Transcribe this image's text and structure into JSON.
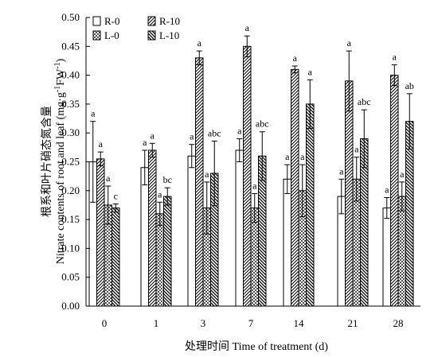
{
  "chart_data": {
    "type": "bar",
    "xlabel": "处理时间 Time of treatment (d)",
    "ylabel_cn": "根系和叶片硝态氮含量",
    "ylabel_en_pre": "Nitrate contents of root and leaf (mg·g",
    "ylabel_en_sup1": "-1",
    "ylabel_en_mid": "FW",
    "ylabel_en_sup2": "-1",
    "ylabel_en_post": ")",
    "ylim": [
      0,
      0.5
    ],
    "yticks": [
      "0.00",
      "0.05",
      "0.10",
      "0.15",
      "0.20",
      "0.25",
      "0.30",
      "0.35",
      "0.40",
      "0.45",
      "0.50"
    ],
    "categories": [
      "0",
      "1",
      "3",
      "7",
      "14",
      "21",
      "28"
    ],
    "grid": false,
    "legend_position": "top-left",
    "series": [
      {
        "name": "R-0",
        "pattern": "none",
        "values": [
          0.25,
          0.24,
          0.26,
          0.27,
          0.22,
          0.19,
          0.17
        ],
        "errors": [
          0.07,
          0.03,
          0.02,
          0.02,
          0.025,
          0.03,
          0.018
        ],
        "labels": [
          "a",
          "a",
          "a",
          "a",
          "a",
          "a",
          "a"
        ]
      },
      {
        "name": "R-10",
        "pattern": "diag",
        "values": [
          0.255,
          0.27,
          0.43,
          0.45,
          0.41,
          0.39,
          0.4
        ],
        "errors": [
          0.012,
          0.012,
          0.012,
          0.018,
          0.006,
          0.052,
          0.018
        ],
        "labels": [
          "a",
          "a",
          "a",
          "a",
          "a",
          "a",
          "a"
        ]
      },
      {
        "name": "L-0",
        "pattern": "cross",
        "values": [
          0.175,
          0.16,
          0.17,
          0.17,
          0.2,
          0.22,
          0.19
        ],
        "errors": [
          0.033,
          0.02,
          0.045,
          0.025,
          0.045,
          0.038,
          0.025
        ],
        "labels": [
          "a",
          "a",
          "a",
          "a",
          "a",
          "a",
          "a"
        ]
      },
      {
        "name": "L-10",
        "pattern": "back",
        "values": [
          0.17,
          0.19,
          0.23,
          0.26,
          0.35,
          0.29,
          0.32
        ],
        "errors": [
          0.007,
          0.015,
          0.056,
          0.042,
          0.042,
          0.05,
          0.048
        ],
        "labels": [
          "c",
          "bc",
          "abc",
          "abc",
          "a",
          "abc",
          "ab"
        ]
      }
    ]
  }
}
